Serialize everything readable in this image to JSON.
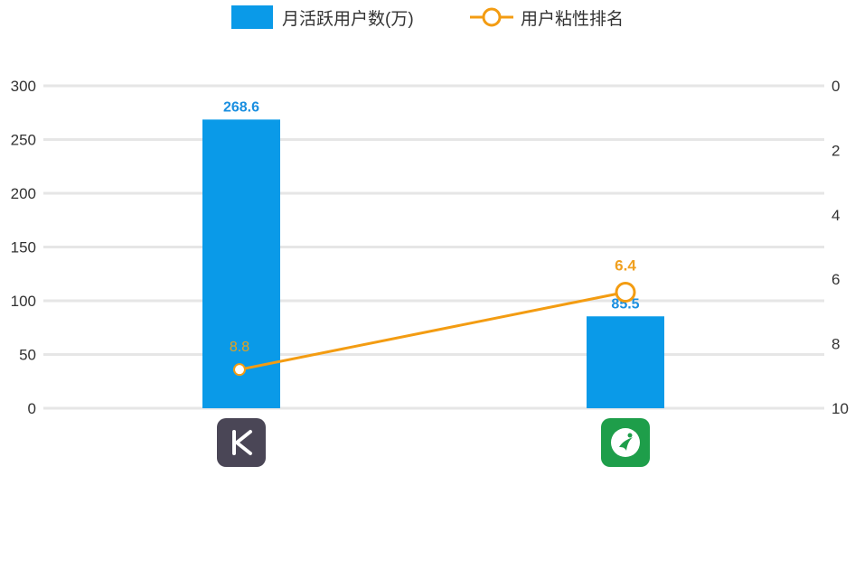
{
  "chart_data": {
    "type": "bar",
    "categories": [
      "Keep",
      "Codoon"
    ],
    "series": [
      {
        "name": "月活跃用户数(万)",
        "kind": "bar",
        "axis": "left",
        "values": [
          268.6,
          85.5
        ],
        "color": "#0a9ae8"
      },
      {
        "name": "用户粘性排名",
        "kind": "line",
        "axis": "right",
        "values": [
          8.8,
          6.4
        ],
        "color": "#f39c12"
      }
    ],
    "left_axis": {
      "ticks": [
        "0",
        "50",
        "100",
        "150",
        "200",
        "250",
        "300"
      ],
      "range": [
        0,
        300
      ]
    },
    "right_axis": {
      "ticks": [
        "10",
        "8",
        "6",
        "4",
        "2",
        "0"
      ],
      "range": [
        10,
        0
      ],
      "inverted": true
    },
    "bar_labels": [
      "268.6",
      "85.5"
    ],
    "line_labels": [
      "8.8",
      "6.4"
    ],
    "legend": {
      "position": "top",
      "items": [
        "月活跃用户数(万)",
        "用户粘性排名"
      ]
    },
    "grid": true
  },
  "icons": {
    "keep": "keep-app-icon",
    "codoon": "codoon-app-icon"
  },
  "colors": {
    "bar": "#0a9ae8",
    "line": "#f39c12",
    "grid": "#e6e6e6"
  }
}
